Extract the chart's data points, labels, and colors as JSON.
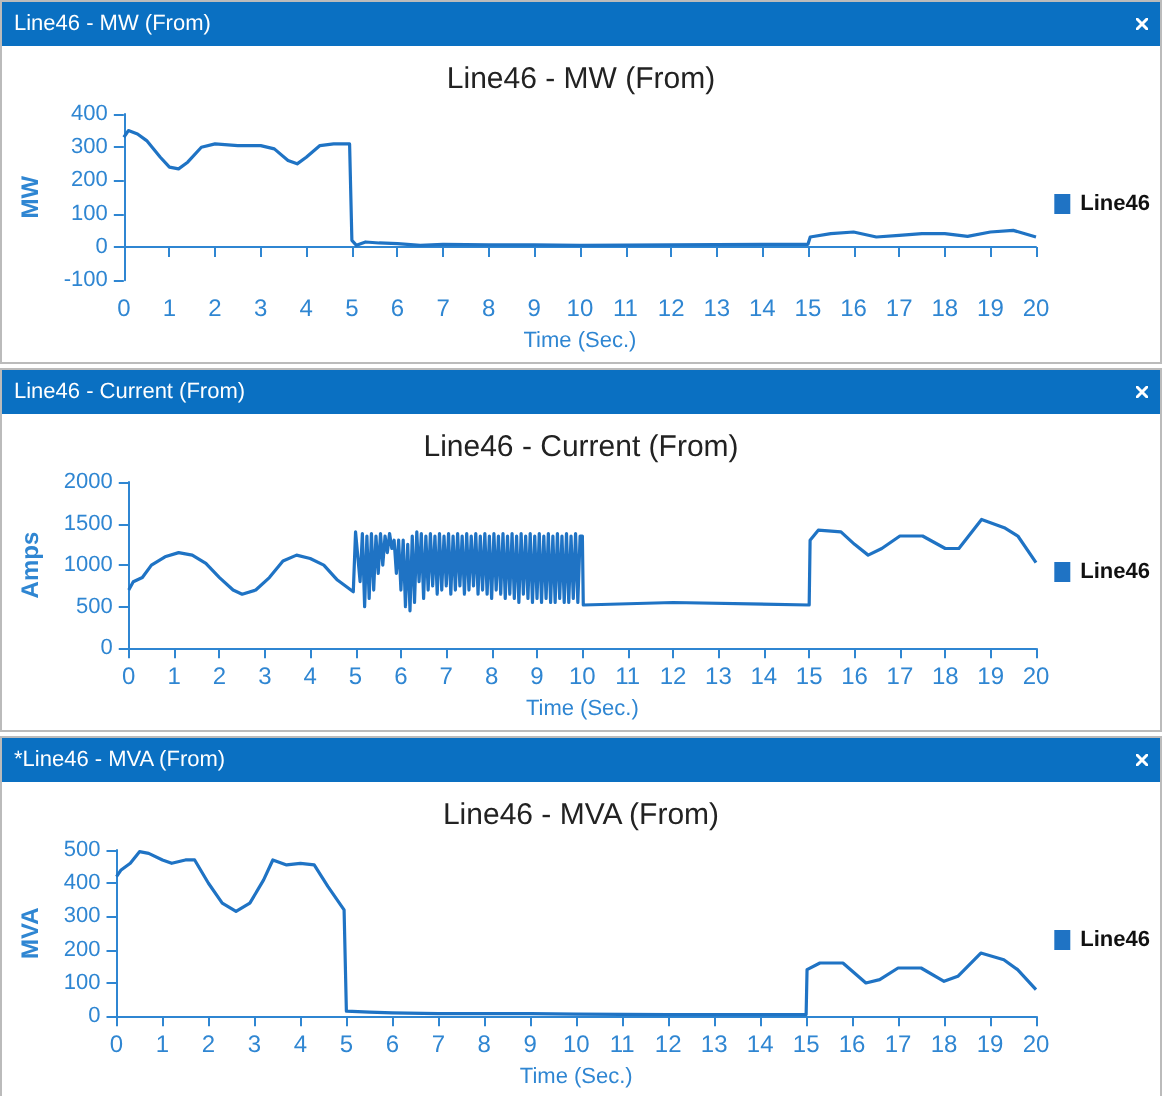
{
  "chart_data": [
    {
      "type": "line",
      "title": "Line46 - MW (From)",
      "xlabel": "Time (Sec.)",
      "ylabel": "MW",
      "annotations": [
        "Line46 - MW (From)"
      ],
      "legend": "right",
      "marker": "none",
      "xlim": [
        0,
        20
      ],
      "xticks": [
        0,
        1,
        2,
        3,
        4,
        5,
        6,
        7,
        8,
        9,
        10,
        11,
        12,
        13,
        14,
        15,
        16,
        17,
        18,
        19,
        20
      ],
      "ylim": [
        -100,
        400
      ],
      "yticks": [
        -100,
        0,
        100,
        200,
        300,
        400
      ],
      "series": [
        {
          "name": "Line46",
          "color": "#1f73c4",
          "x": [
            0,
            0.1,
            0.3,
            0.5,
            0.8,
            1.0,
            1.2,
            1.4,
            1.7,
            2.0,
            2.5,
            3.0,
            3.3,
            3.6,
            3.8,
            4.0,
            4.3,
            4.6,
            4.95,
            5.0,
            5.1,
            5.3,
            5.6,
            6,
            6.5,
            7,
            8,
            9,
            10,
            12,
            14,
            15,
            15.05,
            15.5,
            16,
            16.5,
            17,
            17.5,
            18,
            18.5,
            19,
            19.5,
            20
          ],
          "values": [
            330,
            350,
            340,
            320,
            270,
            240,
            235,
            255,
            300,
            310,
            305,
            305,
            295,
            260,
            250,
            270,
            305,
            310,
            310,
            20,
            5,
            15,
            12,
            10,
            5,
            8,
            6,
            6,
            5,
            6,
            8,
            8,
            30,
            40,
            45,
            30,
            35,
            40,
            40,
            32,
            45,
            50,
            30
          ]
        }
      ]
    },
    {
      "type": "line",
      "title": "Line46 - Current (From)",
      "xlabel": "Time (Sec.)",
      "ylabel": "Amps",
      "annotations": [
        "Line46 - Current (From)"
      ],
      "legend": "right",
      "marker": "none",
      "xlim": [
        0,
        20
      ],
      "xticks": [
        0,
        1,
        2,
        3,
        4,
        5,
        6,
        7,
        8,
        9,
        10,
        11,
        12,
        13,
        14,
        15,
        16,
        17,
        18,
        19,
        20
      ],
      "ylim": [
        0,
        2000
      ],
      "yticks": [
        0,
        500,
        1000,
        1500,
        2000
      ],
      "series": [
        {
          "name": "Line46",
          "color": "#1f73c4",
          "x": [
            0,
            0.1,
            0.3,
            0.5,
            0.8,
            1.1,
            1.4,
            1.7,
            2.0,
            2.3,
            2.5,
            2.8,
            3.1,
            3.4,
            3.7,
            4.0,
            4.3,
            4.6,
            4.95,
            5.0,
            5.1,
            5.15,
            5.2,
            5.25,
            5.3,
            5.35,
            5.4,
            5.45,
            5.5,
            5.55,
            5.6,
            5.65,
            5.7,
            5.75,
            5.8,
            5.85,
            5.9,
            5.95,
            6.0,
            6.05,
            6.1,
            6.15,
            6.2,
            6.25,
            6.3,
            6.35,
            6.4,
            6.45,
            6.5,
            6.55,
            6.6,
            6.65,
            6.7,
            6.75,
            6.8,
            6.85,
            6.9,
            6.95,
            7.0,
            7.05,
            7.1,
            7.15,
            7.2,
            7.25,
            7.3,
            7.35,
            7.4,
            7.45,
            7.5,
            7.55,
            7.6,
            7.65,
            7.7,
            7.75,
            7.8,
            7.85,
            7.9,
            7.95,
            8.0,
            8.05,
            8.1,
            8.15,
            8.2,
            8.25,
            8.3,
            8.35,
            8.4,
            8.45,
            8.5,
            8.55,
            8.6,
            8.65,
            8.7,
            8.75,
            8.8,
            8.85,
            8.9,
            8.95,
            9.0,
            9.05,
            9.1,
            9.15,
            9.2,
            9.25,
            9.3,
            9.35,
            9.4,
            9.45,
            9.5,
            9.55,
            9.6,
            9.65,
            9.7,
            9.75,
            9.8,
            9.85,
            9.9,
            9.95,
            10.0,
            10.02,
            12,
            15,
            15.02,
            15.2,
            15.7,
            16,
            16.3,
            16.6,
            17,
            17.5,
            18,
            18.3,
            18.8,
            19.3,
            19.6,
            20
          ],
          "values": [
            700,
            800,
            850,
            1000,
            1100,
            1150,
            1120,
            1020,
            850,
            700,
            650,
            700,
            850,
            1050,
            1120,
            1080,
            1000,
            820,
            680,
            1400,
            800,
            1380,
            500,
            1350,
            600,
            1380,
            700,
            1350,
            900,
            1380,
            1000,
            1350,
            1150,
            1380,
            1200,
            1300,
            900,
            1300,
            700,
            1300,
            500,
            1250,
            450,
            1350,
            550,
            1400,
            800,
            1380,
            600,
            1350,
            700,
            1380,
            750,
            1350,
            650,
            1380,
            700,
            1350,
            750,
            1380,
            650,
            1350,
            700,
            1380,
            750,
            1350,
            650,
            1380,
            700,
            1350,
            750,
            1380,
            650,
            1350,
            700,
            1380,
            650,
            1350,
            600,
            1380,
            700,
            1350,
            650,
            1380,
            600,
            1350,
            650,
            1380,
            600,
            1350,
            550,
            1380,
            650,
            1350,
            600,
            1380,
            550,
            1350,
            600,
            1380,
            550,
            1350,
            600,
            1380,
            550,
            1350,
            550,
            1380,
            600,
            1350,
            550,
            1380,
            550,
            1350,
            600,
            1380,
            550,
            1350,
            1350,
            520,
            550,
            520,
            1300,
            1420,
            1400,
            1250,
            1120,
            1200,
            1350,
            1350,
            1200,
            1200,
            1550,
            1450,
            1350,
            1030
          ]
        }
      ]
    },
    {
      "type": "line",
      "title": "Line46 - MVA (From)",
      "xlabel": "Time (Sec.)",
      "ylabel": "MVA",
      "annotations": [
        "*Line46 - MVA (From)"
      ],
      "legend": "right",
      "marker": "none",
      "xlim": [
        0,
        20
      ],
      "xticks": [
        0,
        1,
        2,
        3,
        4,
        5,
        6,
        7,
        8,
        9,
        10,
        11,
        12,
        13,
        14,
        15,
        16,
        17,
        18,
        19,
        20
      ],
      "ylim": [
        0,
        500
      ],
      "yticks": [
        0,
        100,
        200,
        300,
        400,
        500
      ],
      "series": [
        {
          "name": "Line46",
          "color": "#1f73c4",
          "x": [
            0,
            0.1,
            0.3,
            0.5,
            0.7,
            1.0,
            1.2,
            1.5,
            1.7,
            2.0,
            2.3,
            2.6,
            2.9,
            3.2,
            3.4,
            3.7,
            4.0,
            4.3,
            4.6,
            4.95,
            5.0,
            5.5,
            6,
            7,
            8,
            9,
            10,
            12,
            15,
            15.02,
            15.3,
            15.8,
            16.3,
            16.6,
            17,
            17.5,
            18,
            18.3,
            18.8,
            19.3,
            19.6,
            20
          ],
          "values": [
            420,
            440,
            460,
            495,
            490,
            470,
            460,
            470,
            470,
            400,
            340,
            315,
            340,
            410,
            470,
            455,
            460,
            455,
            390,
            320,
            15,
            12,
            10,
            8,
            8,
            8,
            6,
            5,
            5,
            140,
            160,
            160,
            100,
            110,
            145,
            145,
            105,
            120,
            190,
            170,
            140,
            80
          ]
        }
      ]
    }
  ]
}
